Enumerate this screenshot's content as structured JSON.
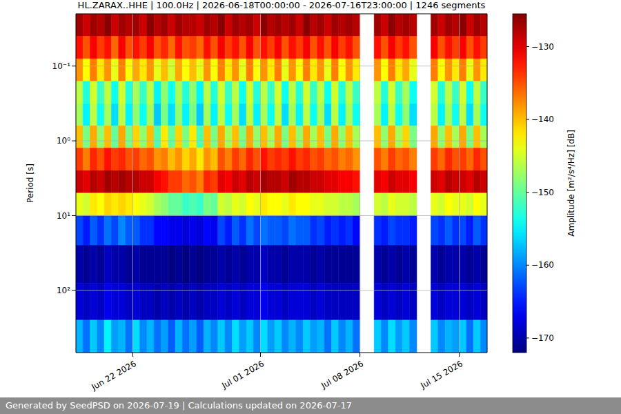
{
  "chart_data": {
    "type": "heatmap",
    "title": "HL.ZARAX..HHE | 100.0Hz | 2026-06-18T00:00:00 - 2026-07-16T23:00:00 | 1246 segments",
    "y_label": "Period [s]",
    "log": "y",
    "grid": true,
    "xlim": [
      "2026-06-18T00:00",
      "2026-07-16T23:00"
    ],
    "xticks": [
      {
        "value": "2026-06-22T00:00",
        "label": "Jun 22 2026"
      },
      {
        "value": "2026-07-01T00:00",
        "label": "Jul 01 2026"
      },
      {
        "value": "2026-07-08T00:00",
        "label": "Jul 08 2026"
      },
      {
        "value": "2026-07-15T00:00",
        "label": "Jul 15 2026"
      }
    ],
    "ylim": [
      0.02,
      680
    ],
    "yticks": [
      {
        "value": 0.1,
        "label": "10⁻¹"
      },
      {
        "value": 1,
        "label": "10⁰"
      },
      {
        "value": 10,
        "label": "10¹"
      },
      {
        "value": 100,
        "label": "10²"
      }
    ],
    "x_edges": [
      "2026-06-18T00:00",
      "2026-06-18T12:00",
      "2026-06-19T00:00",
      "2026-06-19T12:00",
      "2026-06-20T00:00",
      "2026-06-20T12:00",
      "2026-06-21T00:00",
      "2026-06-21T12:00",
      "2026-06-22T00:00",
      "2026-06-22T12:00",
      "2026-06-23T00:00",
      "2026-06-23T12:00",
      "2026-06-24T00:00",
      "2026-06-24T12:00",
      "2026-06-25T00:00",
      "2026-06-25T12:00",
      "2026-06-26T00:00",
      "2026-06-26T12:00",
      "2026-06-27T00:00",
      "2026-06-27T12:00",
      "2026-06-28T00:00",
      "2026-06-28T12:00",
      "2026-06-29T00:00",
      "2026-06-29T12:00",
      "2026-06-30T00:00",
      "2026-06-30T12:00",
      "2026-07-01T00:00",
      "2026-07-01T12:00",
      "2026-07-02T00:00",
      "2026-07-02T12:00",
      "2026-07-03T00:00",
      "2026-07-03T12:00",
      "2026-07-04T00:00",
      "2026-07-04T12:00",
      "2026-07-05T00:00",
      "2026-07-05T12:00",
      "2026-07-06T00:00",
      "2026-07-06T12:00",
      "2026-07-07T00:00",
      "2026-07-07T12:00",
      "2026-07-08T00:00",
      "2026-07-08T12:00",
      "2026-07-09T00:00",
      "2026-07-09T12:00",
      "2026-07-10T00:00",
      "2026-07-10T12:00",
      "2026-07-11T00:00",
      "2026-07-11T12:00",
      "2026-07-12T00:00",
      "2026-07-12T12:00",
      "2026-07-13T00:00",
      "2026-07-13T12:00",
      "2026-07-14T00:00",
      "2026-07-14T12:00",
      "2026-07-15T00:00",
      "2026-07-15T12:00",
      "2026-07-16T00:00",
      "2026-07-16T12:00",
      "2026-07-17T00:00"
    ],
    "y_edges": [
      0.02,
      0.04,
      0.08,
      0.16,
      0.32,
      0.63,
      1.25,
      2.5,
      5,
      10,
      25,
      80,
      250,
      680
    ],
    "cells": [
      [
        -127,
        -129,
        -127,
        -128,
        -126,
        -129,
        -127,
        -128,
        -127,
        -129,
        -126,
        -128,
        -127,
        -129,
        -127,
        -128,
        -128,
        -129,
        -127,
        -128,
        -126,
        -129,
        -127,
        -128,
        -127,
        -129,
        -126,
        -128,
        -127,
        -128,
        -127,
        -129,
        -126,
        -128,
        -127,
        -129,
        -127,
        -128,
        -127,
        -128,
        null,
        null,
        -127,
        -129,
        -126,
        -128,
        -127,
        -128,
        null,
        null,
        -127,
        -129,
        -127,
        -128,
        -126,
        -129,
        -127,
        -128
      ],
      [
        -132,
        -135,
        -131,
        -134,
        -132,
        -136,
        -131,
        -135,
        -132,
        -134,
        -131,
        -135,
        -133,
        -136,
        -132,
        -135,
        -134,
        -136,
        -132,
        -135,
        -131,
        -134,
        -132,
        -135,
        -131,
        -135,
        -132,
        -134,
        -131,
        -135,
        -132,
        -134,
        -131,
        -135,
        -132,
        -135,
        -131,
        -134,
        -132,
        -135,
        null,
        null,
        -132,
        -135,
        -131,
        -134,
        -132,
        -135,
        null,
        null,
        -131,
        -135,
        -132,
        -134,
        -131,
        -135,
        -132,
        -134
      ],
      [
        -138,
        -143,
        -137,
        -142,
        -138,
        -144,
        -137,
        -143,
        -139,
        -142,
        -138,
        -144,
        -140,
        -145,
        -139,
        -143,
        -140,
        -144,
        -138,
        -143,
        -137,
        -142,
        -138,
        -144,
        -137,
        -143,
        -138,
        -142,
        -137,
        -144,
        -138,
        -143,
        -137,
        -142,
        -138,
        -144,
        -137,
        -143,
        -138,
        -142,
        null,
        null,
        -138,
        -143,
        -137,
        -142,
        -139,
        -144,
        null,
        null,
        -137,
        -143,
        -138,
        -142,
        -137,
        -144,
        -138,
        -142
      ],
      [
        -146,
        -153,
        -145,
        -152,
        -146,
        -154,
        -145,
        -153,
        -147,
        -152,
        -146,
        -155,
        -148,
        -154,
        -147,
        -153,
        -148,
        -155,
        -146,
        -153,
        -145,
        -152,
        -146,
        -154,
        -145,
        -153,
        -146,
        -152,
        -145,
        -154,
        -146,
        -153,
        -145,
        -152,
        -146,
        -154,
        -145,
        -153,
        -146,
        -152,
        null,
        null,
        -146,
        -153,
        -145,
        -152,
        -147,
        -154,
        null,
        null,
        -145,
        -153,
        -146,
        -152,
        -145,
        -154,
        -146,
        -152
      ],
      [
        -147,
        -155,
        -146,
        -154,
        -147,
        -156,
        -146,
        -155,
        -148,
        -154,
        -147,
        -157,
        -149,
        -156,
        -148,
        -155,
        -149,
        -157,
        -147,
        -155,
        -146,
        -154,
        -147,
        -156,
        -146,
        -155,
        -147,
        -154,
        -146,
        -156,
        -147,
        -155,
        -146,
        -154,
        -147,
        -156,
        -146,
        -155,
        -147,
        -154,
        null,
        null,
        -147,
        -155,
        -146,
        -154,
        -148,
        -156,
        null,
        null,
        -146,
        -155,
        -147,
        -154,
        -146,
        -156,
        -147,
        -154
      ],
      [
        -140,
        -149,
        -139,
        -148,
        -140,
        -150,
        -139,
        -149,
        -141,
        -148,
        -140,
        -151,
        -142,
        -150,
        -141,
        -149,
        -142,
        -151,
        -140,
        -149,
        -139,
        -147,
        -140,
        -149,
        -139,
        -148,
        -140,
        -147,
        -139,
        -149,
        -140,
        -148,
        -139,
        -147,
        -140,
        -149,
        -139,
        -148,
        -140,
        -147,
        null,
        null,
        -140,
        -148,
        -139,
        -147,
        -141,
        -149,
        null,
        null,
        -139,
        -148,
        -140,
        -147,
        -139,
        -149,
        -140,
        -147
      ],
      [
        -134,
        -137,
        -133,
        -135,
        -132,
        -134,
        -133,
        -135,
        -134,
        -136,
        -135,
        -138,
        -137,
        -140,
        -138,
        -141,
        -139,
        -142,
        -138,
        -140,
        -135,
        -137,
        -134,
        -136,
        -133,
        -135,
        -132,
        -134,
        -133,
        -134,
        -132,
        -134,
        -133,
        -135,
        -134,
        -136,
        -135,
        -137,
        -136,
        -138,
        null,
        null,
        -135,
        -137,
        -134,
        -136,
        -135,
        -137,
        null,
        null,
        -134,
        -136,
        -133,
        -135,
        -134,
        -136,
        -133,
        -135
      ],
      [
        -129,
        -130,
        -128,
        -129,
        -127,
        -128,
        -127,
        -128,
        -128,
        -129,
        -129,
        -131,
        -132,
        -134,
        -134,
        -136,
        -135,
        -137,
        -133,
        -134,
        -130,
        -131,
        -129,
        -130,
        -128,
        -129,
        -127,
        -128,
        -128,
        -129,
        -127,
        -128,
        -128,
        -129,
        -129,
        -130,
        -130,
        -131,
        -131,
        -132,
        null,
        null,
        -130,
        -131,
        -129,
        -130,
        -130,
        -131,
        null,
        null,
        -129,
        -130,
        -128,
        -129,
        -129,
        -130,
        -128,
        -129
      ],
      [
        -144,
        -145,
        -142,
        -143,
        -141,
        -142,
        -141,
        -142,
        -143,
        -144,
        -145,
        -147,
        -148,
        -150,
        -150,
        -152,
        -151,
        -152,
        -149,
        -150,
        -145,
        -146,
        -144,
        -145,
        -143,
        -144,
        -142,
        -143,
        -143,
        -144,
        -142,
        -143,
        -143,
        -144,
        -144,
        -145,
        -145,
        -146,
        -146,
        -147,
        null,
        null,
        -145,
        -146,
        -144,
        -145,
        -145,
        -146,
        null,
        null,
        -144,
        -145,
        -143,
        -144,
        -144,
        -145,
        -143,
        -144
      ],
      [
        -163,
        -165,
        -162,
        -164,
        -161,
        -163,
        -160,
        -162,
        -162,
        -164,
        -164,
        -166,
        -166,
        -167,
        -167,
        -168,
        -167,
        -168,
        -166,
        -167,
        -163,
        -165,
        -162,
        -164,
        -161,
        -163,
        -161,
        -162,
        -162,
        -163,
        -161,
        -162,
        -162,
        -164,
        -163,
        -165,
        -164,
        -165,
        -164,
        -166,
        null,
        null,
        -164,
        -165,
        -163,
        -164,
        -164,
        -165,
        null,
        null,
        -163,
        -164,
        -162,
        -164,
        -163,
        -165,
        -162,
        -164
      ],
      [
        -170,
        -171,
        -170,
        -171,
        -169,
        -170,
        -170,
        -171,
        -170,
        -171,
        -171,
        -171,
        -171,
        -172,
        -171,
        -172,
        -171,
        -172,
        -171,
        -171,
        -170,
        -171,
        -170,
        -171,
        -170,
        -170,
        -169,
        -170,
        -170,
        -171,
        -170,
        -170,
        -170,
        -171,
        -170,
        -171,
        -171,
        -171,
        -171,
        -171,
        null,
        null,
        -170,
        -171,
        -170,
        -171,
        -170,
        -171,
        null,
        null,
        -170,
        -171,
        -170,
        -170,
        -170,
        -171,
        -170,
        -171
      ],
      [
        -168,
        -169,
        -168,
        -169,
        -167,
        -168,
        -168,
        -169,
        -168,
        -169,
        -169,
        -170,
        -169,
        -170,
        -169,
        -170,
        -169,
        -170,
        -169,
        -169,
        -168,
        -169,
        -168,
        -169,
        -168,
        -168,
        -167,
        -168,
        -168,
        -169,
        -168,
        -168,
        -168,
        -169,
        -168,
        -169,
        -169,
        -169,
        -169,
        -169,
        null,
        null,
        -168,
        -169,
        -168,
        -169,
        -168,
        -169,
        null,
        null,
        -168,
        -169,
        -168,
        -168,
        -168,
        -169,
        -168,
        -169
      ],
      [
        -158,
        -161,
        -157,
        -160,
        -155,
        -159,
        -158,
        -161,
        -156,
        -160,
        -158,
        -161,
        -159,
        -162,
        -158,
        -161,
        -159,
        -162,
        -158,
        -160,
        -157,
        -160,
        -156,
        -159,
        -157,
        -160,
        -156,
        -159,
        -157,
        -160,
        -158,
        -160,
        -157,
        -159,
        -158,
        -161,
        -157,
        -160,
        -158,
        -161,
        null,
        null,
        -157,
        -160,
        -156,
        -159,
        -157,
        -160,
        null,
        null,
        -157,
        -160,
        -158,
        -159,
        -157,
        -161,
        -157,
        -160
      ]
    ],
    "colorbar": {
      "label": "Amplitude [m²/s⁴/Hz] [dB]",
      "range": [
        -172,
        -125.5
      ],
      "ticks": [
        {
          "value": -170,
          "label": "−170"
        },
        {
          "value": -160,
          "label": "−160"
        },
        {
          "value": -150,
          "label": "−150"
        },
        {
          "value": -140,
          "label": "−140"
        },
        {
          "value": -130,
          "label": "−130"
        }
      ]
    }
  },
  "footer": "Generated by SeedPSD on 2026-07-19 | Calculations updated on 2026-07-17"
}
